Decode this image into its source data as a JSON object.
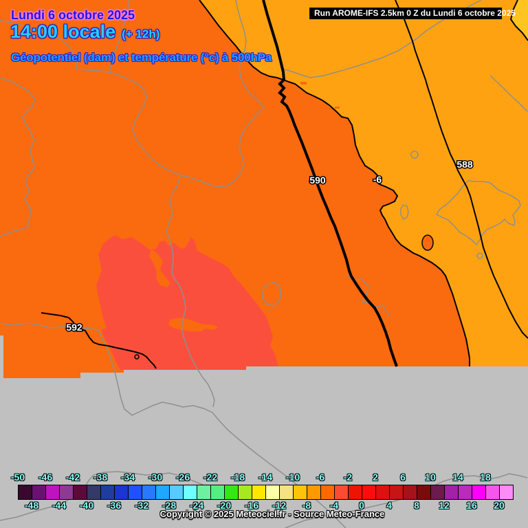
{
  "header": {
    "date": "Lundi 6 octobre 2025",
    "time": "14:00 locale",
    "time_offset": "(+ 12h)",
    "subtitle": "Géopotentiel (dam) et température (°c) à 500hPa"
  },
  "run_box": {
    "text": "Run AROME-IFS 2.5km 0 Z du Lundi 6 octobre 2025"
  },
  "map": {
    "contour_labels": [
      {
        "text": "590"
      },
      {
        "text": "-6"
      },
      {
        "text": "588"
      },
      {
        "text": "592"
      }
    ],
    "region_colors": {
      "temp_band_-6_-4": "#FA6A0E",
      "temp_band_-8_-6": "#FFA211",
      "temp_band_-4_-2": "#FB4F3D",
      "temp_band_-10_-8": "#FFC41F",
      "no_data_area": "#C0C0C0",
      "border_lines": "#8F8F8F",
      "contour_lines": "#000000"
    }
  },
  "legend": {
    "top_labels": [
      "-50",
      "-46",
      "-42",
      "-38",
      "-34",
      "-30",
      "-26",
      "-22",
      "-18",
      "-14",
      "-10",
      "-6",
      "-2",
      "2",
      "6",
      "10",
      "14",
      "18"
    ],
    "bottom_labels": [
      "-48",
      "-44",
      "-40",
      "-36",
      "-32",
      "-28",
      "-24",
      "-20",
      "-16",
      "-12",
      "-8",
      "-4",
      "0",
      "4",
      "8",
      "12",
      "16",
      "20"
    ],
    "swatches": [
      "#38082F",
      "#6A1272",
      "#C013C0",
      "#8C3A94",
      "#5C0A3C",
      "#333A69",
      "#1F3D9E",
      "#1A35D2",
      "#2050FF",
      "#2979FF",
      "#1FA8FF",
      "#55CBFF",
      "#70FFFF",
      "#6FF0A0",
      "#55EE85",
      "#35E813",
      "#A8E821",
      "#FFE800",
      "#FFFFA8",
      "#F5E283",
      "#FFC30A",
      "#FF9900",
      "#FF6A00",
      "#FB4B32",
      "#EE1404",
      "#FB0D0D",
      "#DF1010",
      "#C81414",
      "#A5121A",
      "#7C0A0A",
      "#6B1B4D",
      "#A122A7",
      "#BB2ABB",
      "#FB00FB",
      "#F457EA",
      "#FC8CF8"
    ],
    "label_color": "#87FFF9"
  },
  "footer": {
    "copyright": "Copyright © 2025 Meteociel.fr - Source Meteo-France"
  }
}
